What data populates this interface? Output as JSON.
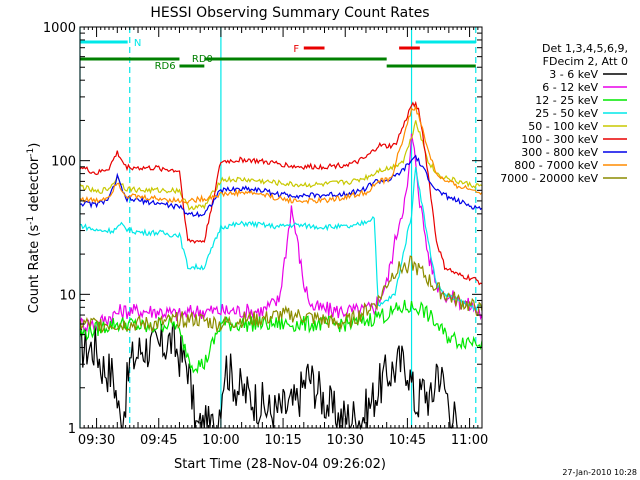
{
  "chart_data": {
    "type": "line",
    "title": "HESSI Observing Summary Count Rates",
    "xlabel": "Start Time (28-Nov-04 09:26:02)",
    "ylabel_main": "Count Rate (s",
    "ylabel_sup1": "-1",
    "ylabel_mid": " detector",
    "ylabel_sup2": "-1",
    "ylabel_end": ")",
    "yscale": "log",
    "ylim": [
      1,
      1000
    ],
    "xlim_minutes": [
      0,
      97
    ],
    "x_ticks": [
      {
        "label": "09:30",
        "min": 4
      },
      {
        "label": "09:45",
        "min": 19
      },
      {
        "label": "10:00",
        "min": 34
      },
      {
        "label": "10:15",
        "min": 49
      },
      {
        "label": "10:30",
        "min": 64
      },
      {
        "label": "10:45",
        "min": 79
      },
      {
        "label": "11:00",
        "min": 94
      }
    ],
    "y_ticks": [
      {
        "label": "1",
        "value": 1
      },
      {
        "label": "10",
        "value": 10
      },
      {
        "label": "100",
        "value": 100
      },
      {
        "label": "1000",
        "value": 1000
      }
    ],
    "legend": {
      "header": [
        "Det 1,3,4,5,6,9,",
        "FDecim 2, Att 0"
      ],
      "entries": [
        {
          "label": "3 - 6 keV",
          "color": "#000000"
        },
        {
          "label": "6 - 12 keV",
          "color": "#e800e8"
        },
        {
          "label": "12 - 25 keV",
          "color": "#00e800"
        },
        {
          "label": "25 - 50 keV",
          "color": "#00e8e8"
        },
        {
          "label": "50 - 100 keV",
          "color": "#c8c800"
        },
        {
          "label": "100 - 300 keV",
          "color": "#e80000"
        },
        {
          "label": "300 - 800 keV",
          "color": "#0000e8"
        },
        {
          "label": "800 - 7000 keV",
          "color": "#ff8c00"
        },
        {
          "label": "7000 - 20000 keV",
          "color": "#8c8c00"
        }
      ]
    },
    "flags": {
      "n_label": "N",
      "rd0_label": "RD0",
      "rd6_label": "RD6",
      "f_label": "F"
    },
    "series": [
      {
        "name": "3 - 6 keV",
        "color": "#000000",
        "points": [
          [
            0,
            4
          ],
          [
            4,
            4
          ],
          [
            5,
            3
          ],
          [
            8,
            2.5
          ],
          [
            10,
            1
          ],
          [
            12,
            3
          ],
          [
            15,
            4
          ],
          [
            19,
            4
          ],
          [
            22,
            4.5
          ],
          [
            24,
            3.5
          ],
          [
            26,
            3
          ],
          [
            28,
            1
          ],
          [
            33,
            1
          ],
          [
            35,
            3
          ],
          [
            38,
            2
          ],
          [
            44,
            1.5
          ],
          [
            46,
            1.3
          ],
          [
            52,
            1.5
          ],
          [
            55,
            2.5
          ],
          [
            58,
            1.8
          ],
          [
            62,
            1.2
          ],
          [
            68,
            1.2
          ],
          [
            70,
            1.5
          ],
          [
            72,
            2
          ],
          [
            74,
            2.5
          ],
          [
            77,
            3
          ],
          [
            79,
            3
          ],
          [
            81,
            1.5
          ],
          [
            83,
            2
          ],
          [
            85,
            1.5
          ],
          [
            86,
            3
          ],
          [
            88,
            2
          ],
          [
            91,
            1
          ]
        ]
      },
      {
        "name": "6 - 12 keV",
        "color": "#e800e8",
        "points": [
          [
            0,
            6
          ],
          [
            4,
            6
          ],
          [
            8,
            7
          ],
          [
            10,
            7.5
          ],
          [
            14,
            7.5
          ],
          [
            19,
            7.5
          ],
          [
            24,
            7
          ],
          [
            28,
            7.5
          ],
          [
            35,
            7.5
          ],
          [
            44,
            7.5
          ],
          [
            48,
            9
          ],
          [
            50,
            25
          ],
          [
            51,
            45
          ],
          [
            52,
            30
          ],
          [
            54,
            12
          ],
          [
            56,
            8
          ],
          [
            62,
            7.5
          ],
          [
            68,
            7.5
          ],
          [
            71,
            8
          ],
          [
            74,
            12
          ],
          [
            77,
            35
          ],
          [
            79,
            60
          ],
          [
            80,
            150
          ],
          [
            81,
            100
          ],
          [
            82,
            50
          ],
          [
            84,
            20
          ],
          [
            86,
            12
          ],
          [
            88,
            10
          ],
          [
            91,
            9
          ],
          [
            95,
            8
          ],
          [
            97,
            7
          ]
        ]
      },
      {
        "name": "12 - 25 keV",
        "color": "#00e800",
        "points": [
          [
            0,
            5
          ],
          [
            4,
            5.5
          ],
          [
            8,
            6
          ],
          [
            12,
            6
          ],
          [
            17,
            5.5
          ],
          [
            19,
            6
          ],
          [
            23,
            6
          ],
          [
            27,
            3
          ],
          [
            30,
            3
          ],
          [
            34,
            6
          ],
          [
            40,
            6
          ],
          [
            46,
            6
          ],
          [
            50,
            6
          ],
          [
            55,
            6
          ],
          [
            60,
            6
          ],
          [
            66,
            6
          ],
          [
            70,
            6.5
          ],
          [
            72,
            7
          ],
          [
            74,
            7
          ],
          [
            76,
            7.5
          ],
          [
            78,
            8
          ],
          [
            80,
            8
          ],
          [
            82,
            8
          ],
          [
            84,
            7
          ],
          [
            86,
            6
          ],
          [
            88,
            5
          ],
          [
            91,
            4.5
          ],
          [
            95,
            4.5
          ],
          [
            97,
            4.5
          ]
        ]
      },
      {
        "name": "25 - 50 keV",
        "color": "#00e8e8",
        "points": [
          [
            0,
            33
          ],
          [
            4,
            30
          ],
          [
            8,
            30
          ],
          [
            10,
            33
          ],
          [
            12,
            30
          ],
          [
            15,
            29
          ],
          [
            19,
            29
          ],
          [
            22,
            28
          ],
          [
            24,
            28
          ],
          [
            26,
            16
          ],
          [
            30,
            16
          ],
          [
            34,
            32
          ],
          [
            40,
            34
          ],
          [
            44,
            33
          ],
          [
            48,
            32
          ],
          [
            50,
            33
          ],
          [
            52,
            33
          ],
          [
            58,
            32
          ],
          [
            62,
            32
          ],
          [
            66,
            32
          ],
          [
            69,
            35
          ],
          [
            71,
            38
          ],
          [
            72,
            8
          ],
          [
            74,
            9
          ],
          [
            76,
            10
          ],
          [
            78,
            20
          ],
          [
            80,
            40
          ],
          [
            81,
            90
          ],
          [
            82,
            60
          ],
          [
            84,
            25
          ],
          [
            86,
            12
          ],
          [
            88,
            10
          ],
          [
            91,
            9
          ],
          [
            95,
            8
          ],
          [
            97,
            8
          ]
        ]
      },
      {
        "name": "50 - 100 keV",
        "color": "#c8c800",
        "points": [
          [
            0,
            65
          ],
          [
            4,
            58
          ],
          [
            7,
            62
          ],
          [
            9,
            75
          ],
          [
            11,
            62
          ],
          [
            15,
            60
          ],
          [
            19,
            60
          ],
          [
            22,
            60
          ],
          [
            24,
            60
          ],
          [
            26,
            45
          ],
          [
            30,
            45
          ],
          [
            34,
            72
          ],
          [
            40,
            72
          ],
          [
            44,
            70
          ],
          [
            48,
            68
          ],
          [
            52,
            66
          ],
          [
            58,
            66
          ],
          [
            62,
            68
          ],
          [
            66,
            70
          ],
          [
            69,
            75
          ],
          [
            71,
            80
          ],
          [
            72,
            85
          ],
          [
            75,
            88
          ],
          [
            78,
            100
          ],
          [
            80,
            150
          ],
          [
            81,
            200
          ],
          [
            82,
            160
          ],
          [
            84,
            100
          ],
          [
            86,
            80
          ],
          [
            88,
            75
          ],
          [
            91,
            70
          ],
          [
            95,
            65
          ],
          [
            97,
            65
          ]
        ]
      },
      {
        "name": "100 - 300 keV",
        "color": "#e80000",
        "points": [
          [
            0,
            90
          ],
          [
            4,
            80
          ],
          [
            7,
            88
          ],
          [
            9,
            115
          ],
          [
            11,
            90
          ],
          [
            15,
            88
          ],
          [
            19,
            88
          ],
          [
            22,
            85
          ],
          [
            24,
            84
          ],
          [
            26,
            25
          ],
          [
            30,
            25
          ],
          [
            34,
            98
          ],
          [
            40,
            102
          ],
          [
            44,
            98
          ],
          [
            48,
            95
          ],
          [
            52,
            90
          ],
          [
            58,
            90
          ],
          [
            62,
            92
          ],
          [
            66,
            95
          ],
          [
            69,
            105
          ],
          [
            71,
            120
          ],
          [
            72,
            130
          ],
          [
            74,
            128
          ],
          [
            76,
            130
          ],
          [
            78,
            180
          ],
          [
            80,
            260
          ],
          [
            81,
            270
          ],
          [
            82,
            220
          ],
          [
            84,
            80
          ],
          [
            86,
            25
          ],
          [
            88,
            16
          ],
          [
            91,
            14
          ],
          [
            95,
            13
          ],
          [
            97,
            12
          ]
        ]
      },
      {
        "name": "300 - 800 keV",
        "color": "#0000e8",
        "points": [
          [
            0,
            48
          ],
          [
            4,
            47
          ],
          [
            7,
            52
          ],
          [
            9,
            75
          ],
          [
            11,
            52
          ],
          [
            15,
            50
          ],
          [
            19,
            48
          ],
          [
            22,
            46
          ],
          [
            24,
            45
          ],
          [
            26,
            40
          ],
          [
            30,
            40
          ],
          [
            34,
            60
          ],
          [
            40,
            62
          ],
          [
            44,
            60
          ],
          [
            48,
            56
          ],
          [
            52,
            55
          ],
          [
            58,
            55
          ],
          [
            62,
            56
          ],
          [
            66,
            58
          ],
          [
            69,
            62
          ],
          [
            71,
            70
          ],
          [
            72,
            70
          ],
          [
            75,
            72
          ],
          [
            78,
            85
          ],
          [
            80,
            100
          ],
          [
            81,
            108
          ],
          [
            82,
            95
          ],
          [
            84,
            75
          ],
          [
            86,
            60
          ],
          [
            88,
            55
          ],
          [
            91,
            50
          ],
          [
            95,
            45
          ],
          [
            97,
            44
          ]
        ]
      },
      {
        "name": "800 - 7000 keV",
        "color": "#ff8c00",
        "points": [
          [
            0,
            52
          ],
          [
            4,
            50
          ],
          [
            7,
            54
          ],
          [
            9,
            70
          ],
          [
            11,
            55
          ],
          [
            15,
            53
          ],
          [
            19,
            52
          ],
          [
            22,
            51
          ],
          [
            24,
            50
          ],
          [
            26,
            50
          ],
          [
            30,
            52
          ],
          [
            34,
            56
          ],
          [
            40,
            58
          ],
          [
            44,
            56
          ],
          [
            48,
            52
          ],
          [
            52,
            50
          ],
          [
            58,
            50
          ],
          [
            62,
            52
          ],
          [
            66,
            55
          ],
          [
            69,
            58
          ],
          [
            71,
            65
          ],
          [
            72,
            70
          ],
          [
            75,
            72
          ],
          [
            78,
            150
          ],
          [
            80,
            240
          ],
          [
            81,
            250
          ],
          [
            82,
            200
          ],
          [
            84,
            120
          ],
          [
            86,
            80
          ],
          [
            88,
            70
          ],
          [
            91,
            65
          ],
          [
            95,
            60
          ],
          [
            97,
            58
          ]
        ]
      },
      {
        "name": "7000 - 20000 keV",
        "color": "#8c8c00",
        "points": [
          [
            0,
            6
          ],
          [
            4,
            6
          ],
          [
            8,
            6
          ],
          [
            12,
            6
          ],
          [
            16,
            6
          ],
          [
            19,
            6
          ],
          [
            24,
            6.5
          ],
          [
            28,
            6.5
          ],
          [
            34,
            6
          ],
          [
            40,
            6.5
          ],
          [
            44,
            6.5
          ],
          [
            48,
            7
          ],
          [
            52,
            7
          ],
          [
            58,
            6.5
          ],
          [
            62,
            6
          ],
          [
            66,
            6.5
          ],
          [
            70,
            8
          ],
          [
            72,
            9
          ],
          [
            74,
            12
          ],
          [
            76,
            15
          ],
          [
            78,
            16
          ],
          [
            80,
            17
          ],
          [
            82,
            15
          ],
          [
            84,
            13
          ],
          [
            86,
            11
          ],
          [
            88,
            10
          ],
          [
            91,
            9
          ],
          [
            95,
            8
          ],
          [
            97,
            7.5
          ]
        ]
      }
    ]
  },
  "timestamp": "27-Jan-2010 10:28"
}
